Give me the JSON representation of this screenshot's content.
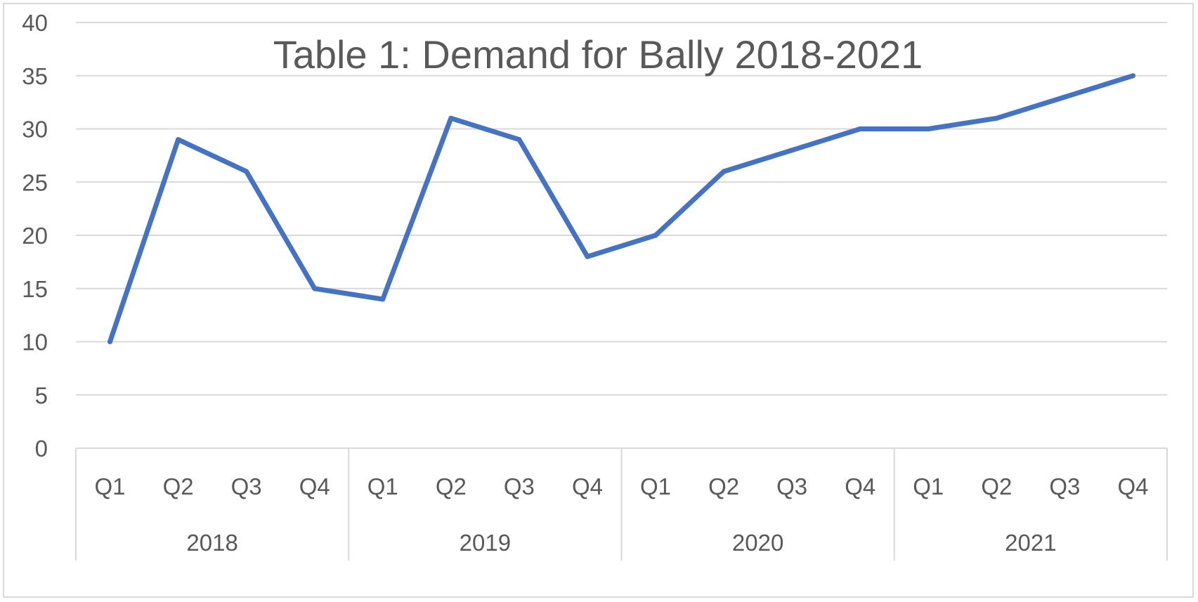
{
  "chart_data": {
    "type": "line",
    "title": "Table 1: Demand for Bally 2018-2021",
    "xlabel": "",
    "ylabel": "",
    "ylim": [
      0,
      40
    ],
    "yticks": [
      "0",
      "5",
      "10",
      "15",
      "20",
      "25",
      "30",
      "35",
      "40"
    ],
    "year_groups": [
      {
        "label": "2018",
        "quarters": [
          "Q1",
          "Q2",
          "Q3",
          "Q4"
        ]
      },
      {
        "label": "2019",
        "quarters": [
          "Q1",
          "Q2",
          "Q3",
          "Q4"
        ]
      },
      {
        "label": "2020",
        "quarters": [
          "Q1",
          "Q2",
          "Q3",
          "Q4"
        ]
      },
      {
        "label": "2021",
        "quarters": [
          "Q1",
          "Q2",
          "Q3",
          "Q4"
        ]
      }
    ],
    "series": [
      {
        "name": "Demand",
        "color": "#4472C4",
        "values": [
          10,
          29,
          26,
          15,
          14,
          31,
          29,
          18,
          20,
          26,
          28,
          30,
          30,
          31,
          33,
          35
        ]
      }
    ],
    "grid": true,
    "legend": "none"
  }
}
